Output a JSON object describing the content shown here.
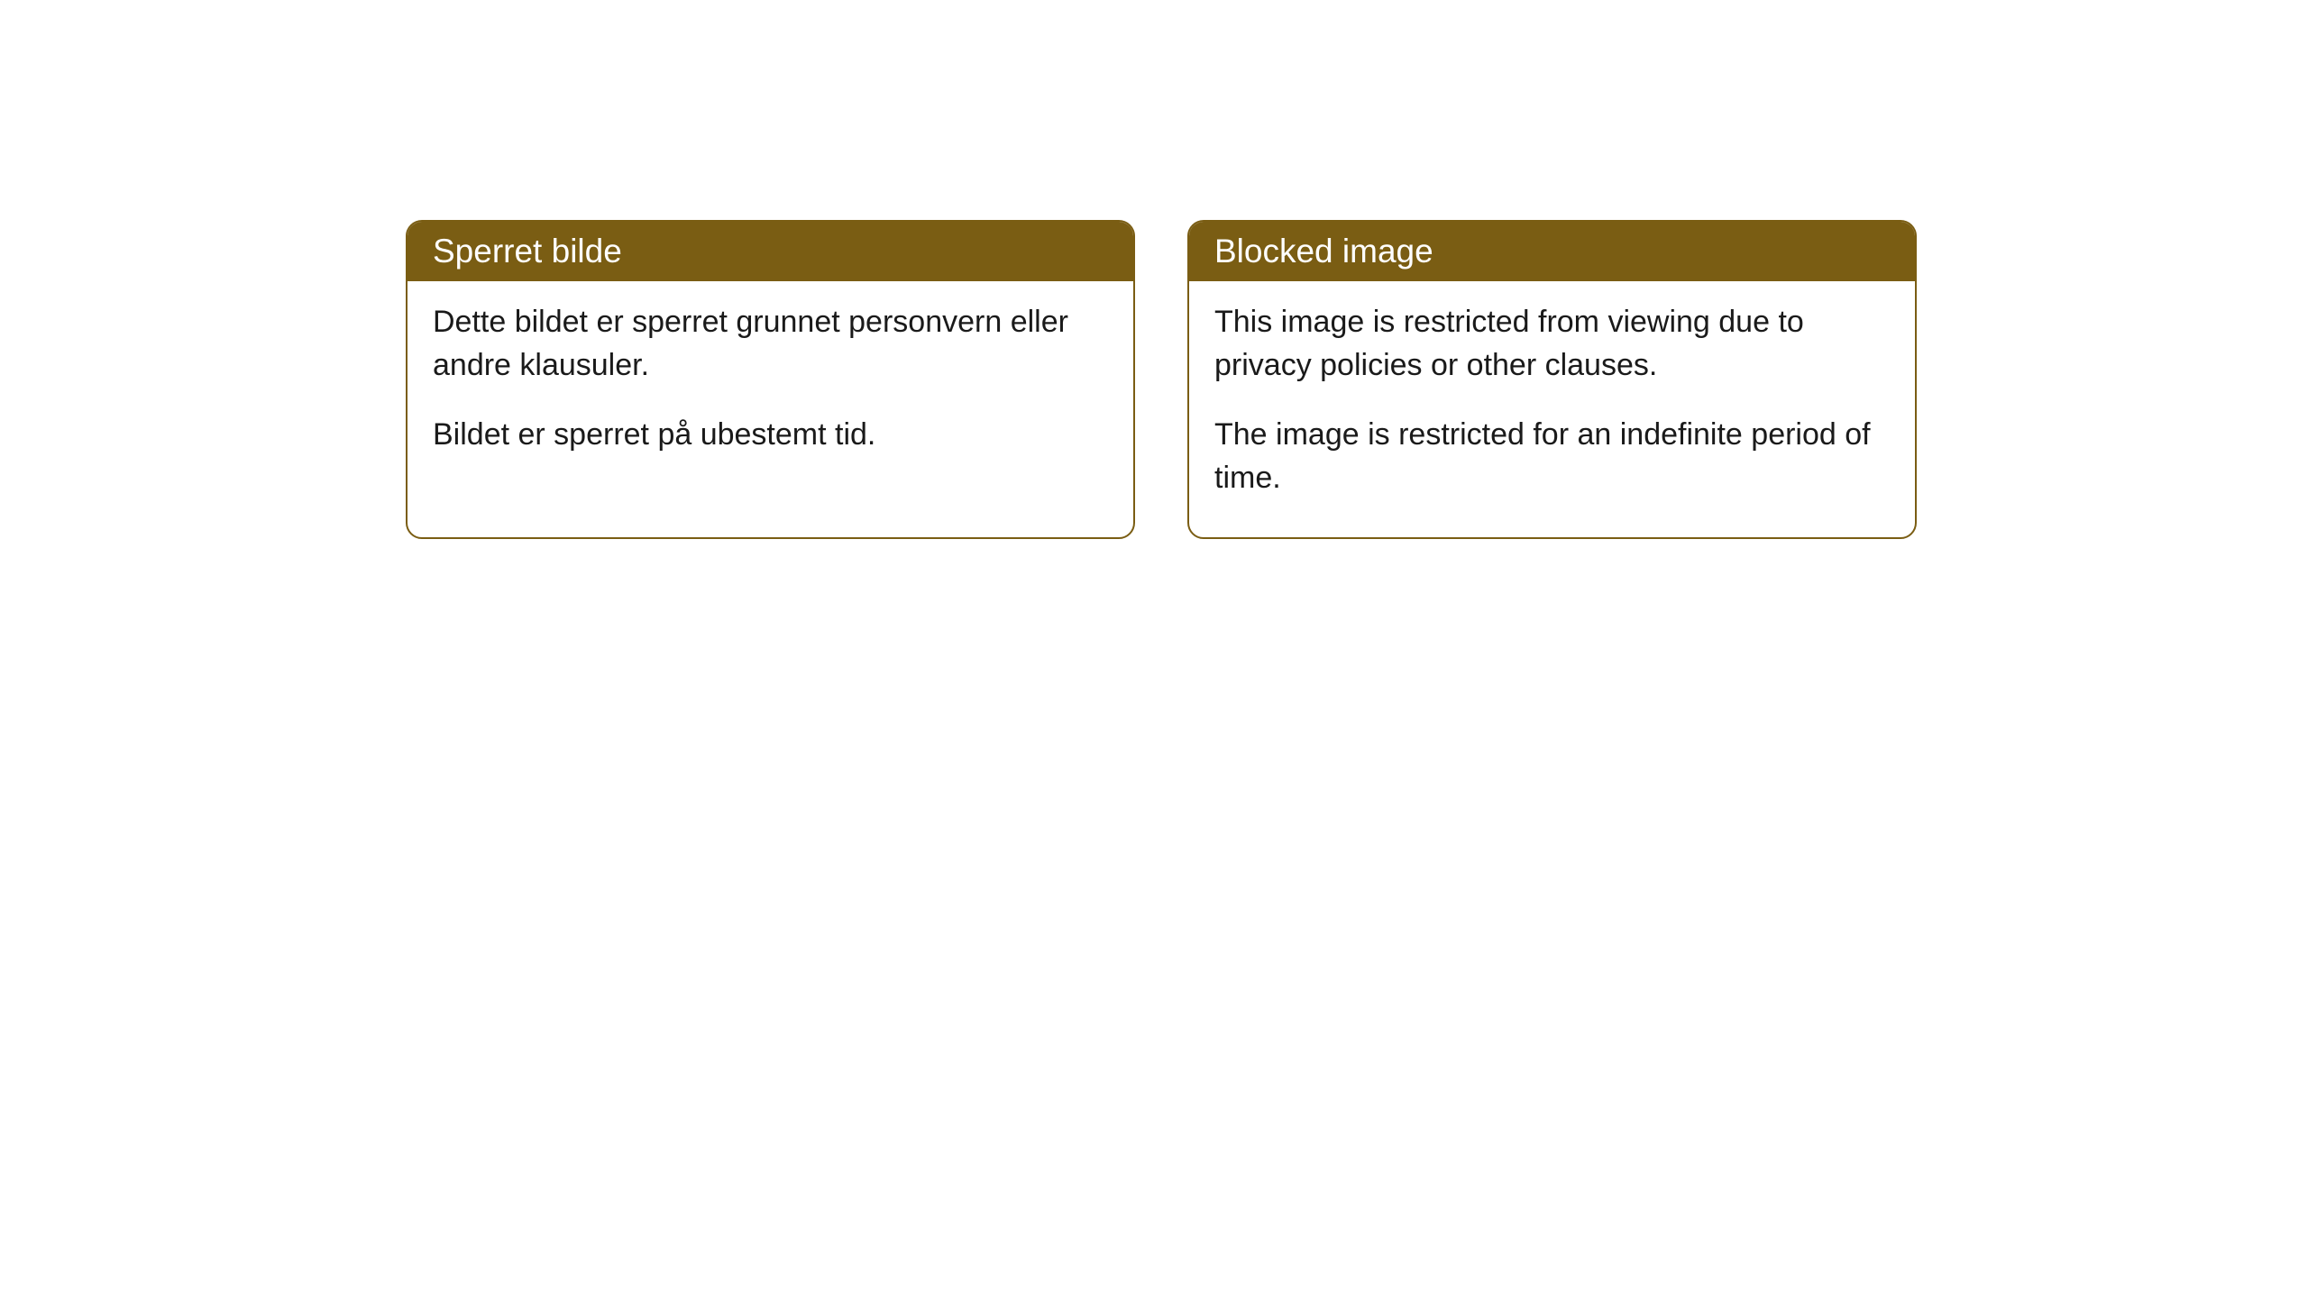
{
  "cards": [
    {
      "title": "Sperret bilde",
      "paragraph1": "Dette bildet er sperret grunnet personvern eller andre klausuler.",
      "paragraph2": "Bildet er sperret på ubestemt tid."
    },
    {
      "title": "Blocked image",
      "paragraph1": "This image is restricted from viewing due to privacy policies or other clauses.",
      "paragraph2": "The image is restricted for an indefinite period of time."
    }
  ],
  "styling": {
    "header_background_color": "#7a5d13",
    "header_text_color": "#ffffff",
    "border_color": "#7a5d13",
    "body_background_color": "#ffffff",
    "body_text_color": "#1a1a1a",
    "border_radius": 18,
    "header_fontsize": 37,
    "body_fontsize": 34,
    "page_background_color": "#ffffff"
  }
}
